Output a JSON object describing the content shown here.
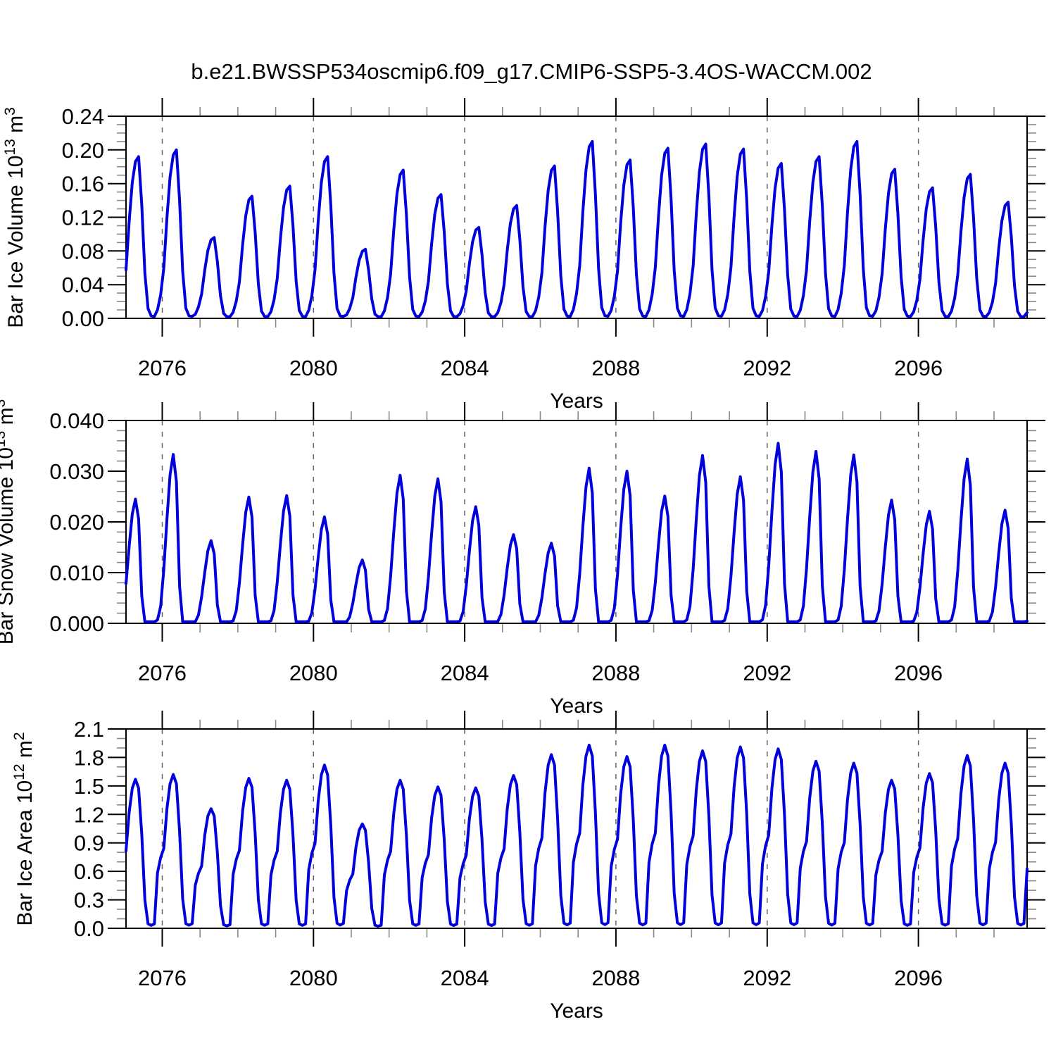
{
  "title": "b.e21.BWSSP534oscmip6.f09_g17.CMIP6-SSP5-3.4OS-WACCM.002",
  "figure": {
    "background": "#ffffff",
    "line_color": "#0000DD",
    "axis_color": "#000000",
    "minor_tick_color": "#888888",
    "grid_color": "#666666"
  },
  "x_axis": {
    "label": "Years",
    "range": [
      2075.042,
      2098.875
    ],
    "major_ticks": [
      2076,
      2080,
      2084,
      2088,
      2092,
      2096
    ],
    "major_tick_labels": [
      "2076",
      "2080",
      "2084",
      "2088",
      "2092",
      "2096"
    ],
    "minor_tick_every_years": 1
  },
  "chart_data": [
    {
      "type": "line",
      "name": "bar-ice-volume",
      "ylabel_plain": "Bar Ice Volume 10^13 m^3",
      "ylabel_parts": [
        [
          "t",
          "Bar Ice Volume 10"
        ],
        [
          "s",
          "13"
        ],
        [
          "t",
          " m"
        ],
        [
          "s",
          "3"
        ]
      ],
      "xlabel": "Years",
      "ylim": [
        0.0,
        0.24
      ],
      "ytick_values": [
        0.0,
        0.04,
        0.08,
        0.12,
        0.16,
        0.2,
        0.24
      ],
      "ytick_labels": [
        "0.00",
        "0.04",
        "0.08",
        "0.12",
        "0.16",
        "0.20",
        "0.24"
      ],
      "y_minor_step": 0.01,
      "years": [
        2075,
        2076,
        2077,
        2078,
        2079,
        2080,
        2081,
        2082,
        2083,
        2084,
        2085,
        2086,
        2087,
        2088,
        2089,
        2090,
        2091,
        2092,
        2093,
        2094,
        2095,
        2096,
        2097,
        2098
      ],
      "annual_peaks": [
        0.192,
        0.2,
        0.096,
        0.145,
        0.157,
        0.192,
        0.082,
        0.176,
        0.147,
        0.108,
        0.134,
        0.181,
        0.21,
        0.188,
        0.202,
        0.207,
        0.201,
        0.184,
        0.192,
        0.21,
        0.177,
        0.155,
        0.171,
        0.138
      ],
      "monthly_fraction_of_peak": [
        0.3,
        0.6,
        0.84,
        0.97,
        1.0,
        0.7,
        0.28,
        0.06,
        0.015,
        0.012,
        0.05,
        0.14
      ],
      "min_floor": 0.002
    },
    {
      "type": "line",
      "name": "bar-snow-volume",
      "ylabel_plain": "Bar Snow Volume 10^13 m^3",
      "ylabel_parts": [
        [
          "t",
          "Bar Snow Volume 10"
        ],
        [
          "s",
          "13"
        ],
        [
          "t",
          " m"
        ],
        [
          "s",
          "3"
        ]
      ],
      "xlabel": "Years",
      "ylim": [
        0.0,
        0.04
      ],
      "ytick_values": [
        0.0,
        0.01,
        0.02,
        0.03,
        0.04
      ],
      "ytick_labels": [
        "0.000",
        "0.010",
        "0.020",
        "0.030",
        "0.040"
      ],
      "y_minor_step": 0.002,
      "years": [
        2075,
        2076,
        2077,
        2078,
        2079,
        2080,
        2081,
        2082,
        2083,
        2084,
        2085,
        2086,
        2087,
        2088,
        2089,
        2090,
        2091,
        2092,
        2093,
        2094,
        2095,
        2096,
        2097,
        2098
      ],
      "annual_peaks": [
        0.0245,
        0.0333,
        0.0163,
        0.0249,
        0.0252,
        0.021,
        0.0125,
        0.0292,
        0.0285,
        0.023,
        0.0175,
        0.0158,
        0.0306,
        0.03,
        0.0251,
        0.0331,
        0.0289,
        0.0355,
        0.0339,
        0.0332,
        0.0243,
        0.0221,
        0.0324,
        0.0223
      ],
      "monthly_fraction_of_peak": [
        0.32,
        0.62,
        0.88,
        1.0,
        0.84,
        0.22,
        0.01,
        0.004,
        0.004,
        0.005,
        0.02,
        0.1
      ],
      "min_floor": 0.0003
    },
    {
      "type": "line",
      "name": "bar-ice-area",
      "ylabel_plain": "Bar Ice Area 10^12 m^2",
      "ylabel_parts": [
        [
          "t",
          "Bar Ice Area 10"
        ],
        [
          "s",
          "12"
        ],
        [
          "t",
          " m"
        ],
        [
          "s",
          "2"
        ]
      ],
      "xlabel": "Years",
      "ylim": [
        0.0,
        2.1
      ],
      "ytick_values": [
        0.0,
        0.3,
        0.6,
        0.9,
        1.2,
        1.5,
        1.8,
        2.1
      ],
      "ytick_labels": [
        "0.0",
        "0.3",
        "0.6",
        "0.9",
        "1.2",
        "1.5",
        "1.8",
        "2.1"
      ],
      "y_minor_step": 0.1,
      "years": [
        2075,
        2076,
        2077,
        2078,
        2079,
        2080,
        2081,
        2082,
        2083,
        2084,
        2085,
        2086,
        2087,
        2088,
        2089,
        2090,
        2091,
        2092,
        2093,
        2094,
        2095,
        2096,
        2097,
        2098
      ],
      "annual_peaks": [
        1.57,
        1.62,
        1.26,
        1.58,
        1.56,
        1.72,
        1.1,
        1.56,
        1.49,
        1.48,
        1.61,
        1.83,
        1.93,
        1.81,
        1.93,
        1.87,
        1.91,
        1.89,
        1.76,
        1.74,
        1.56,
        1.63,
        1.82,
        1.74
      ],
      "monthly_fraction_of_peak": [
        0.52,
        0.78,
        0.94,
        1.0,
        0.94,
        0.63,
        0.19,
        0.03,
        0.02,
        0.03,
        0.36,
        0.46
      ],
      "min_floor": 0.012
    }
  ]
}
